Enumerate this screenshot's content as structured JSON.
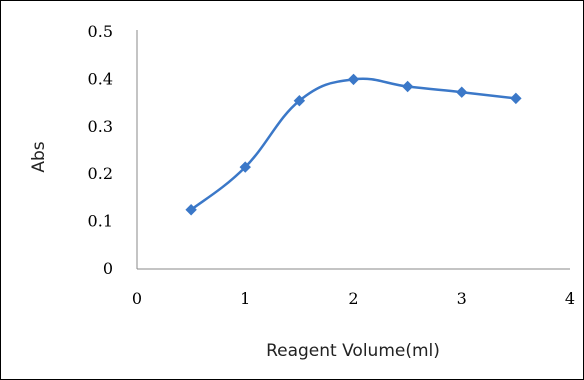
{
  "chart_data": {
    "type": "line",
    "title": "",
    "xlabel": "Reagent Volume(ml)",
    "ylabel": "Abs",
    "xlim": [
      0,
      4
    ],
    "ylim": [
      0,
      0.5
    ],
    "x_ticks": [
      "0",
      "1",
      "2",
      "3",
      "4"
    ],
    "y_ticks": [
      "0",
      "0.1",
      "0.2",
      "0.3",
      "0.4",
      "0.5"
    ],
    "grid": false,
    "legend": "none",
    "series": [
      {
        "x": [
          0.5,
          1.0,
          1.5,
          2.0,
          2.5,
          3.0,
          3.5
        ],
        "y": [
          0.125,
          0.215,
          0.355,
          0.4,
          0.385,
          0.373,
          0.36
        ],
        "color": "#3b78c8",
        "marker": "diamond",
        "smooth": true
      }
    ]
  }
}
